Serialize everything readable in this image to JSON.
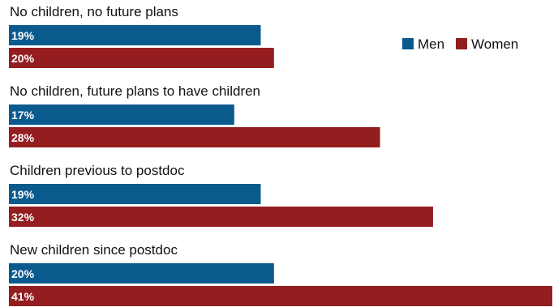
{
  "chart_data": {
    "type": "bar",
    "orientation": "horizontal",
    "categories": [
      "No children, no future plans",
      "No children, future plans to have children",
      "Children previous to postdoc",
      "New children since postdoc"
    ],
    "series": [
      {
        "name": "Men",
        "color": "#0b5a8e",
        "values": [
          19,
          17,
          19,
          20
        ],
        "labels": [
          "19%",
          "17%",
          "19%",
          "20%"
        ]
      },
      {
        "name": "Women",
        "color": "#941d1f",
        "values": [
          20,
          28,
          32,
          41
        ],
        "labels": [
          "20%",
          "28%",
          "32%",
          "41%"
        ]
      }
    ],
    "xlim": [
      0,
      41
    ],
    "unit": "%",
    "legend_position": "top-right",
    "grid": false,
    "axes_visible": false
  }
}
